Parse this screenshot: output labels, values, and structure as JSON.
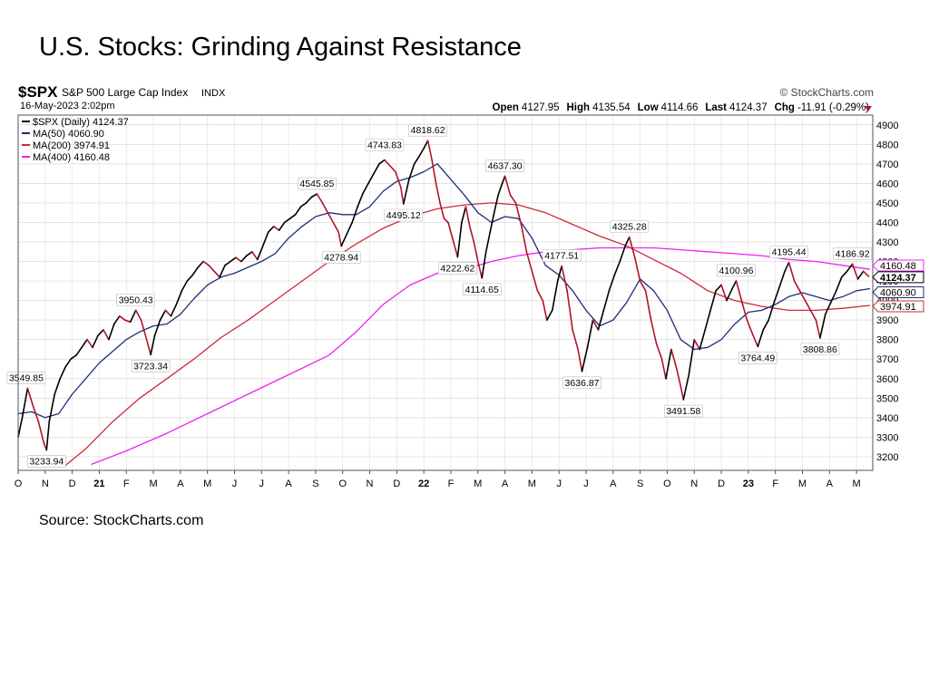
{
  "slide": {
    "title": "U.S. Stocks: Grinding Against Resistance",
    "source": "Source: StockCharts.com"
  },
  "chart_data": {
    "type": "line",
    "ticker": "$SPX",
    "name": "S&P 500 Large Cap Index",
    "exchange": "INDX",
    "date": "16-May-2023 2:02pm",
    "brand": "© StockCharts.com",
    "quote": {
      "open_label": "Open",
      "open": "4127.95",
      "high_label": "High",
      "high": "4135.54",
      "low_label": "Low",
      "low": "4114.66",
      "last_label": "Last",
      "last": "4124.37",
      "chg_label": "Chg",
      "chg": "-11.91 (-0.29%)"
    },
    "legend": [
      {
        "text": "$SPX (Daily) 4124.37",
        "color": "#000000"
      },
      {
        "text": "MA(50) 4060.90",
        "color": "#1f2d7a"
      },
      {
        "text": "MA(200) 3974.91",
        "color": "#cc2a36"
      },
      {
        "text": "MA(400) 4160.48",
        "color": "#ee22ee"
      }
    ],
    "x_labels": [
      "O",
      "N",
      "D",
      "21",
      "F",
      "M",
      "A",
      "M",
      "J",
      "J",
      "A",
      "S",
      "O",
      "N",
      "D",
      "22",
      "F",
      "M",
      "A",
      "M",
      "J",
      "J",
      "A",
      "S",
      "O",
      "N",
      "D",
      "23",
      "F",
      "M",
      "A",
      "M"
    ],
    "y_ticks": [
      3200,
      3300,
      3400,
      3500,
      3600,
      3700,
      3800,
      3900,
      4000,
      4100,
      4200,
      4300,
      4400,
      4500,
      4600,
      4700,
      4800,
      4900
    ],
    "ylim": [
      3130,
      4950
    ],
    "xlim": [
      0,
      31.6
    ],
    "price_series": [
      [
        0.0,
        3300
      ],
      [
        0.15,
        3400
      ],
      [
        0.35,
        3550
      ],
      [
        0.55,
        3460
      ],
      [
        0.75,
        3380
      ],
      [
        0.95,
        3270
      ],
      [
        1.05,
        3234
      ],
      [
        1.15,
        3380
      ],
      [
        1.35,
        3520
      ],
      [
        1.55,
        3600
      ],
      [
        1.75,
        3660
      ],
      [
        1.95,
        3700
      ],
      [
        2.15,
        3720
      ],
      [
        2.35,
        3760
      ],
      [
        2.55,
        3800
      ],
      [
        2.75,
        3760
      ],
      [
        2.95,
        3820
      ],
      [
        3.15,
        3850
      ],
      [
        3.35,
        3800
      ],
      [
        3.55,
        3880
      ],
      [
        3.75,
        3920
      ],
      [
        3.95,
        3900
      ],
      [
        4.15,
        3890
      ],
      [
        4.35,
        3950
      ],
      [
        4.55,
        3900
      ],
      [
        4.75,
        3800
      ],
      [
        4.9,
        3723
      ],
      [
        5.05,
        3820
      ],
      [
        5.25,
        3900
      ],
      [
        5.45,
        3950
      ],
      [
        5.65,
        3920
      ],
      [
        5.85,
        3980
      ],
      [
        6.05,
        4050
      ],
      [
        6.25,
        4100
      ],
      [
        6.45,
        4130
      ],
      [
        6.65,
        4170
      ],
      [
        6.85,
        4200
      ],
      [
        7.05,
        4180
      ],
      [
        7.25,
        4150
      ],
      [
        7.45,
        4120
      ],
      [
        7.65,
        4180
      ],
      [
        7.85,
        4200
      ],
      [
        8.05,
        4220
      ],
      [
        8.25,
        4200
      ],
      [
        8.45,
        4230
      ],
      [
        8.65,
        4250
      ],
      [
        8.85,
        4210
      ],
      [
        9.05,
        4280
      ],
      [
        9.25,
        4350
      ],
      [
        9.45,
        4380
      ],
      [
        9.65,
        4360
      ],
      [
        9.85,
        4400
      ],
      [
        10.05,
        4420
      ],
      [
        10.25,
        4440
      ],
      [
        10.45,
        4480
      ],
      [
        10.65,
        4500
      ],
      [
        10.85,
        4530
      ],
      [
        11.05,
        4546
      ],
      [
        11.25,
        4500
      ],
      [
        11.45,
        4450
      ],
      [
        11.65,
        4400
      ],
      [
        11.85,
        4350
      ],
      [
        11.95,
        4279
      ],
      [
        12.15,
        4340
      ],
      [
        12.35,
        4400
      ],
      [
        12.55,
        4480
      ],
      [
        12.75,
        4550
      ],
      [
        12.95,
        4600
      ],
      [
        13.15,
        4650
      ],
      [
        13.35,
        4700
      ],
      [
        13.55,
        4720
      ],
      [
        13.75,
        4690
      ],
      [
        13.95,
        4660
      ],
      [
        14.15,
        4580
      ],
      [
        14.25,
        4495
      ],
      [
        14.45,
        4620
      ],
      [
        14.65,
        4700
      ],
      [
        14.85,
        4744
      ],
      [
        15.0,
        4780
      ],
      [
        15.15,
        4819
      ],
      [
        15.3,
        4720
      ],
      [
        15.45,
        4600
      ],
      [
        15.6,
        4500
      ],
      [
        15.75,
        4420
      ],
      [
        15.9,
        4400
      ],
      [
        16.1,
        4300
      ],
      [
        16.25,
        4223
      ],
      [
        16.4,
        4400
      ],
      [
        16.55,
        4480
      ],
      [
        16.7,
        4380
      ],
      [
        16.85,
        4300
      ],
      [
        17.0,
        4200
      ],
      [
        17.15,
        4115
      ],
      [
        17.3,
        4250
      ],
      [
        17.45,
        4350
      ],
      [
        17.6,
        4450
      ],
      [
        17.75,
        4540
      ],
      [
        17.9,
        4600
      ],
      [
        18.0,
        4637
      ],
      [
        18.2,
        4540
      ],
      [
        18.4,
        4500
      ],
      [
        18.6,
        4390
      ],
      [
        18.8,
        4250
      ],
      [
        19.0,
        4150
      ],
      [
        19.2,
        4050
      ],
      [
        19.4,
        4000
      ],
      [
        19.55,
        3900
      ],
      [
        19.75,
        3950
      ],
      [
        19.95,
        4100
      ],
      [
        20.1,
        4177
      ],
      [
        20.3,
        4050
      ],
      [
        20.5,
        3850
      ],
      [
        20.7,
        3750
      ],
      [
        20.85,
        3637
      ],
      [
        21.05,
        3760
      ],
      [
        21.25,
        3900
      ],
      [
        21.45,
        3850
      ],
      [
        21.65,
        3950
      ],
      [
        21.85,
        4050
      ],
      [
        22.05,
        4130
      ],
      [
        22.25,
        4200
      ],
      [
        22.45,
        4280
      ],
      [
        22.6,
        4325
      ],
      [
        22.8,
        4220
      ],
      [
        23.0,
        4100
      ],
      [
        23.2,
        4050
      ],
      [
        23.4,
        3900
      ],
      [
        23.6,
        3780
      ],
      [
        23.8,
        3700
      ],
      [
        23.95,
        3600
      ],
      [
        24.15,
        3750
      ],
      [
        24.35,
        3650
      ],
      [
        24.5,
        3560
      ],
      [
        24.6,
        3492
      ],
      [
        24.8,
        3620
      ],
      [
        25.0,
        3800
      ],
      [
        25.2,
        3750
      ],
      [
        25.4,
        3850
      ],
      [
        25.6,
        3950
      ],
      [
        25.8,
        4050
      ],
      [
        26.0,
        4080
      ],
      [
        26.2,
        4000
      ],
      [
        26.4,
        4060
      ],
      [
        26.55,
        4101
      ],
      [
        26.75,
        4000
      ],
      [
        26.95,
        3900
      ],
      [
        27.15,
        3830
      ],
      [
        27.35,
        3764
      ],
      [
        27.55,
        3850
      ],
      [
        27.75,
        3900
      ],
      [
        27.95,
        3990
      ],
      [
        28.15,
        4070
      ],
      [
        28.35,
        4150
      ],
      [
        28.5,
        4195
      ],
      [
        28.7,
        4100
      ],
      [
        28.9,
        4050
      ],
      [
        29.1,
        4000
      ],
      [
        29.3,
        3950
      ],
      [
        29.5,
        3900
      ],
      [
        29.65,
        3809
      ],
      [
        29.85,
        3930
      ],
      [
        30.05,
        3990
      ],
      [
        30.25,
        4050
      ],
      [
        30.45,
        4120
      ],
      [
        30.65,
        4150
      ],
      [
        30.85,
        4187
      ],
      [
        31.05,
        4110
      ],
      [
        31.25,
        4150
      ],
      [
        31.45,
        4124
      ]
    ],
    "ma50": [
      [
        0.0,
        3420
      ],
      [
        0.5,
        3430
      ],
      [
        1.0,
        3400
      ],
      [
        1.5,
        3420
      ],
      [
        2.0,
        3520
      ],
      [
        2.5,
        3600
      ],
      [
        3.0,
        3680
      ],
      [
        3.5,
        3740
      ],
      [
        4.0,
        3800
      ],
      [
        4.5,
        3840
      ],
      [
        5.0,
        3870
      ],
      [
        5.5,
        3880
      ],
      [
        6.0,
        3930
      ],
      [
        6.5,
        4010
      ],
      [
        7.0,
        4080
      ],
      [
        7.5,
        4120
      ],
      [
        8.0,
        4140
      ],
      [
        8.5,
        4170
      ],
      [
        9.0,
        4200
      ],
      [
        9.5,
        4240
      ],
      [
        10.0,
        4320
      ],
      [
        10.5,
        4380
      ],
      [
        11.0,
        4430
      ],
      [
        11.5,
        4450
      ],
      [
        12.0,
        4440
      ],
      [
        12.5,
        4440
      ],
      [
        13.0,
        4480
      ],
      [
        13.5,
        4560
      ],
      [
        14.0,
        4610
      ],
      [
        14.5,
        4630
      ],
      [
        15.0,
        4660
      ],
      [
        15.5,
        4700
      ],
      [
        16.0,
        4620
      ],
      [
        16.5,
        4540
      ],
      [
        17.0,
        4450
      ],
      [
        17.5,
        4400
      ],
      [
        18.0,
        4430
      ],
      [
        18.5,
        4420
      ],
      [
        19.0,
        4320
      ],
      [
        19.5,
        4180
      ],
      [
        20.0,
        4130
      ],
      [
        20.5,
        4050
      ],
      [
        21.0,
        3950
      ],
      [
        21.5,
        3870
      ],
      [
        22.0,
        3900
      ],
      [
        22.5,
        3990
      ],
      [
        23.0,
        4110
      ],
      [
        23.5,
        4050
      ],
      [
        24.0,
        3950
      ],
      [
        24.5,
        3800
      ],
      [
        25.0,
        3750
      ],
      [
        25.5,
        3760
      ],
      [
        26.0,
        3800
      ],
      [
        26.5,
        3880
      ],
      [
        27.0,
        3940
      ],
      [
        27.5,
        3950
      ],
      [
        28.0,
        3980
      ],
      [
        28.5,
        4020
      ],
      [
        29.0,
        4040
      ],
      [
        29.5,
        4020
      ],
      [
        30.0,
        4000
      ],
      [
        30.5,
        4020
      ],
      [
        31.0,
        4050
      ],
      [
        31.5,
        4061
      ]
    ],
    "ma200": [
      [
        1.7,
        3150
      ],
      [
        2.5,
        3240
      ],
      [
        3.5,
        3380
      ],
      [
        4.5,
        3500
      ],
      [
        5.5,
        3600
      ],
      [
        6.5,
        3700
      ],
      [
        7.5,
        3810
      ],
      [
        8.5,
        3900
      ],
      [
        9.5,
        4000
      ],
      [
        10.5,
        4100
      ],
      [
        11.5,
        4200
      ],
      [
        12.5,
        4290
      ],
      [
        13.5,
        4370
      ],
      [
        14.5,
        4430
      ],
      [
        15.5,
        4470
      ],
      [
        16.5,
        4490
      ],
      [
        17.5,
        4500
      ],
      [
        18.5,
        4490
      ],
      [
        19.5,
        4450
      ],
      [
        20.5,
        4390
      ],
      [
        21.5,
        4330
      ],
      [
        22.5,
        4280
      ],
      [
        23.5,
        4210
      ],
      [
        24.5,
        4140
      ],
      [
        25.5,
        4050
      ],
      [
        26.5,
        4000
      ],
      [
        27.5,
        3970
      ],
      [
        28.5,
        3950
      ],
      [
        29.5,
        3950
      ],
      [
        30.5,
        3960
      ],
      [
        31.5,
        3975
      ]
    ],
    "ma400": [
      [
        2.7,
        3160
      ],
      [
        4.0,
        3230
      ],
      [
        5.5,
        3320
      ],
      [
        7.0,
        3420
      ],
      [
        8.5,
        3520
      ],
      [
        10.0,
        3620
      ],
      [
        11.5,
        3720
      ],
      [
        12.5,
        3840
      ],
      [
        13.5,
        3980
      ],
      [
        14.5,
        4080
      ],
      [
        15.5,
        4140
      ],
      [
        16.5,
        4160
      ],
      [
        17.5,
        4200
      ],
      [
        18.5,
        4230
      ],
      [
        19.5,
        4250
      ],
      [
        20.5,
        4260
      ],
      [
        21.5,
        4270
      ],
      [
        22.5,
        4270
      ],
      [
        23.5,
        4270
      ],
      [
        24.5,
        4260
      ],
      [
        25.5,
        4250
      ],
      [
        26.5,
        4240
      ],
      [
        27.5,
        4230
      ],
      [
        28.5,
        4210
      ],
      [
        29.5,
        4200
      ],
      [
        30.5,
        4180
      ],
      [
        31.5,
        4160
      ]
    ],
    "annotations": [
      {
        "text": "3549.85",
        "x": 0.3,
        "y": 3550,
        "pos": "above"
      },
      {
        "text": "3233.94",
        "x": 1.05,
        "y": 3234,
        "pos": "below"
      },
      {
        "text": "3950.43",
        "x": 4.35,
        "y": 3950,
        "pos": "above"
      },
      {
        "text": "3723.34",
        "x": 4.9,
        "y": 3723,
        "pos": "below"
      },
      {
        "text": "4545.85",
        "x": 11.05,
        "y": 4546,
        "pos": "above"
      },
      {
        "text": "4278.94",
        "x": 11.95,
        "y": 4279,
        "pos": "below"
      },
      {
        "text": "4495.12",
        "x": 14.25,
        "y": 4495,
        "pos": "below"
      },
      {
        "text": "4743.83",
        "x": 13.55,
        "y": 4744,
        "pos": "above"
      },
      {
        "text": "4818.62",
        "x": 15.15,
        "y": 4819,
        "pos": "above"
      },
      {
        "text": "4222.62",
        "x": 16.25,
        "y": 4223,
        "pos": "below"
      },
      {
        "text": "4637.30",
        "x": 18.0,
        "y": 4637,
        "pos": "above"
      },
      {
        "text": "4114.65",
        "x": 17.15,
        "y": 4115,
        "pos": "below"
      },
      {
        "text": "4177.51",
        "x": 20.1,
        "y": 4177,
        "pos": "above"
      },
      {
        "text": "3636.87",
        "x": 20.85,
        "y": 3637,
        "pos": "below"
      },
      {
        "text": "4325.28",
        "x": 22.6,
        "y": 4325,
        "pos": "above"
      },
      {
        "text": "3491.58",
        "x": 24.6,
        "y": 3492,
        "pos": "below"
      },
      {
        "text": "4100.96",
        "x": 26.55,
        "y": 4101,
        "pos": "above"
      },
      {
        "text": "3764.49",
        "x": 27.35,
        "y": 3764,
        "pos": "below"
      },
      {
        "text": "4195.44",
        "x": 28.5,
        "y": 4195,
        "pos": "above"
      },
      {
        "text": "3808.86",
        "x": 29.65,
        "y": 3809,
        "pos": "below"
      },
      {
        "text": "4186.92",
        "x": 30.85,
        "y": 4187,
        "pos": "above"
      }
    ],
    "right_tags": [
      {
        "text": "4160.48",
        "value": 4160.48,
        "color": "#ee22ee"
      },
      {
        "text": "4124.37",
        "value": 4124.37,
        "color": "#000000"
      },
      {
        "text": "4060.90",
        "value": 4060.9,
        "color": "#1f2d7a"
      },
      {
        "text": "3974.91",
        "value": 3974.91,
        "color": "#cc2a36"
      }
    ],
    "colors": {
      "price_up": "#000000",
      "price_down": "#b3122a",
      "ma50": "#1f2d7a",
      "ma200": "#cc2a36",
      "ma400": "#ee22ee",
      "grid": "#d8d8d8"
    }
  }
}
